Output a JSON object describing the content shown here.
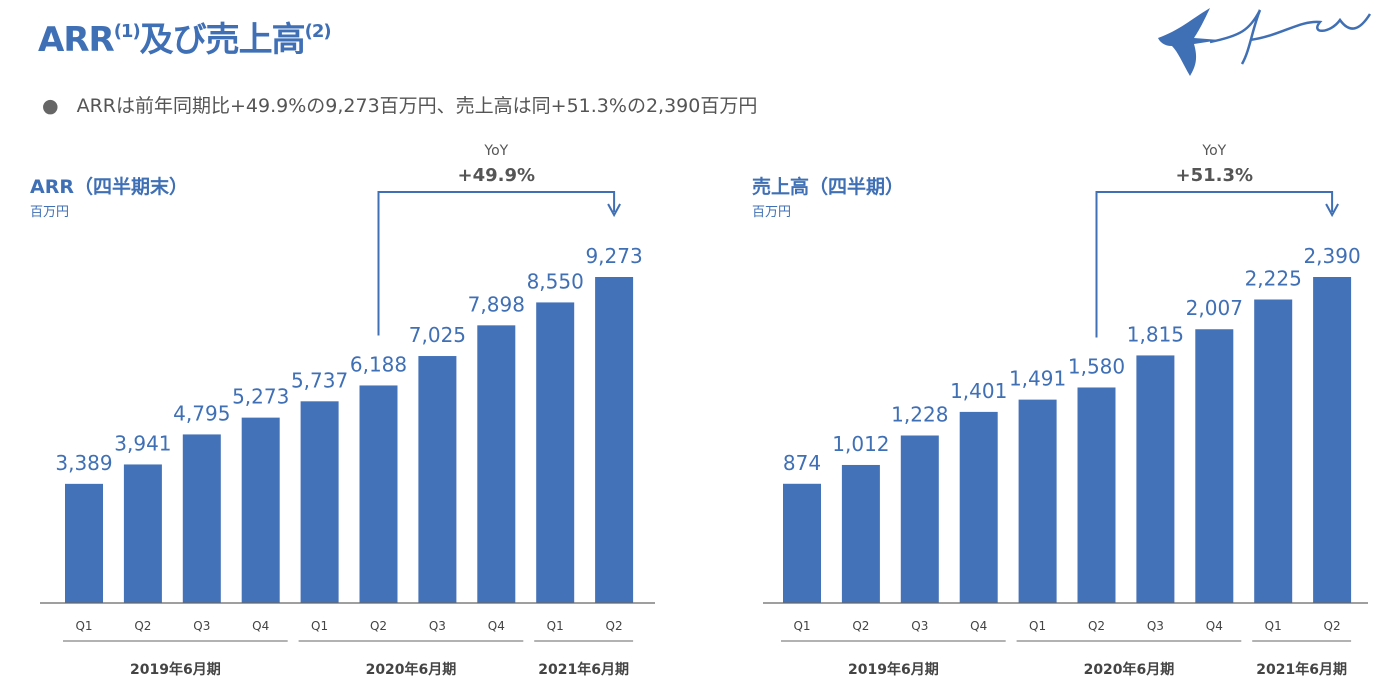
{
  "header": {
    "title_main": "ARR",
    "title_sup1": "(1)",
    "title_rest": "及び売上高",
    "title_sup2": "(2)",
    "logo_text": "freee"
  },
  "summary": "ARRは前年同期比+49.9%の9,273百万円、売上高は同+51.3%の2,390百万円",
  "colors": {
    "bar": "#4472b8",
    "accent": "#3f6fb5",
    "text": "#444444"
  },
  "chart_data": [
    {
      "type": "bar",
      "title": "ARR（四半期末）",
      "ylabel": "百万円",
      "categories": [
        "Q1",
        "Q2",
        "Q3",
        "Q4",
        "Q1",
        "Q2",
        "Q3",
        "Q4",
        "Q1",
        "Q2"
      ],
      "groups": [
        {
          "label": "2019年6月期",
          "count": 4
        },
        {
          "label": "2020年6月期",
          "count": 4
        },
        {
          "label": "2021年6月期",
          "count": 2
        }
      ],
      "values": [
        3389,
        3941,
        4795,
        5273,
        5737,
        6188,
        7025,
        7898,
        8550,
        9273
      ],
      "value_labels": [
        "3,389",
        "3,941",
        "4,795",
        "5,273",
        "5,737",
        "6,188",
        "7,025",
        "7,898",
        "8,550",
        "9,273"
      ],
      "annotation": {
        "label": "YoY",
        "value": "+49.9%",
        "from_index": 5,
        "to_index": 9
      },
      "ylim": [
        0,
        9273
      ],
      "grid": false
    },
    {
      "type": "bar",
      "title": "売上高（四半期）",
      "ylabel": "百万円",
      "categories": [
        "Q1",
        "Q2",
        "Q3",
        "Q4",
        "Q1",
        "Q2",
        "Q3",
        "Q4",
        "Q1",
        "Q2"
      ],
      "groups": [
        {
          "label": "2019年6月期",
          "count": 4
        },
        {
          "label": "2020年6月期",
          "count": 4
        },
        {
          "label": "2021年6月期",
          "count": 2
        }
      ],
      "values": [
        874,
        1012,
        1228,
        1401,
        1491,
        1580,
        1815,
        2007,
        2225,
        2390
      ],
      "value_labels": [
        "874",
        "1,012",
        "1,228",
        "1,401",
        "1,491",
        "1,580",
        "1,815",
        "2,007",
        "2,225",
        "2,390"
      ],
      "annotation": {
        "label": "YoY",
        "value": "+51.3%",
        "from_index": 5,
        "to_index": 9
      },
      "ylim": [
        0,
        2390
      ],
      "grid": false
    }
  ]
}
